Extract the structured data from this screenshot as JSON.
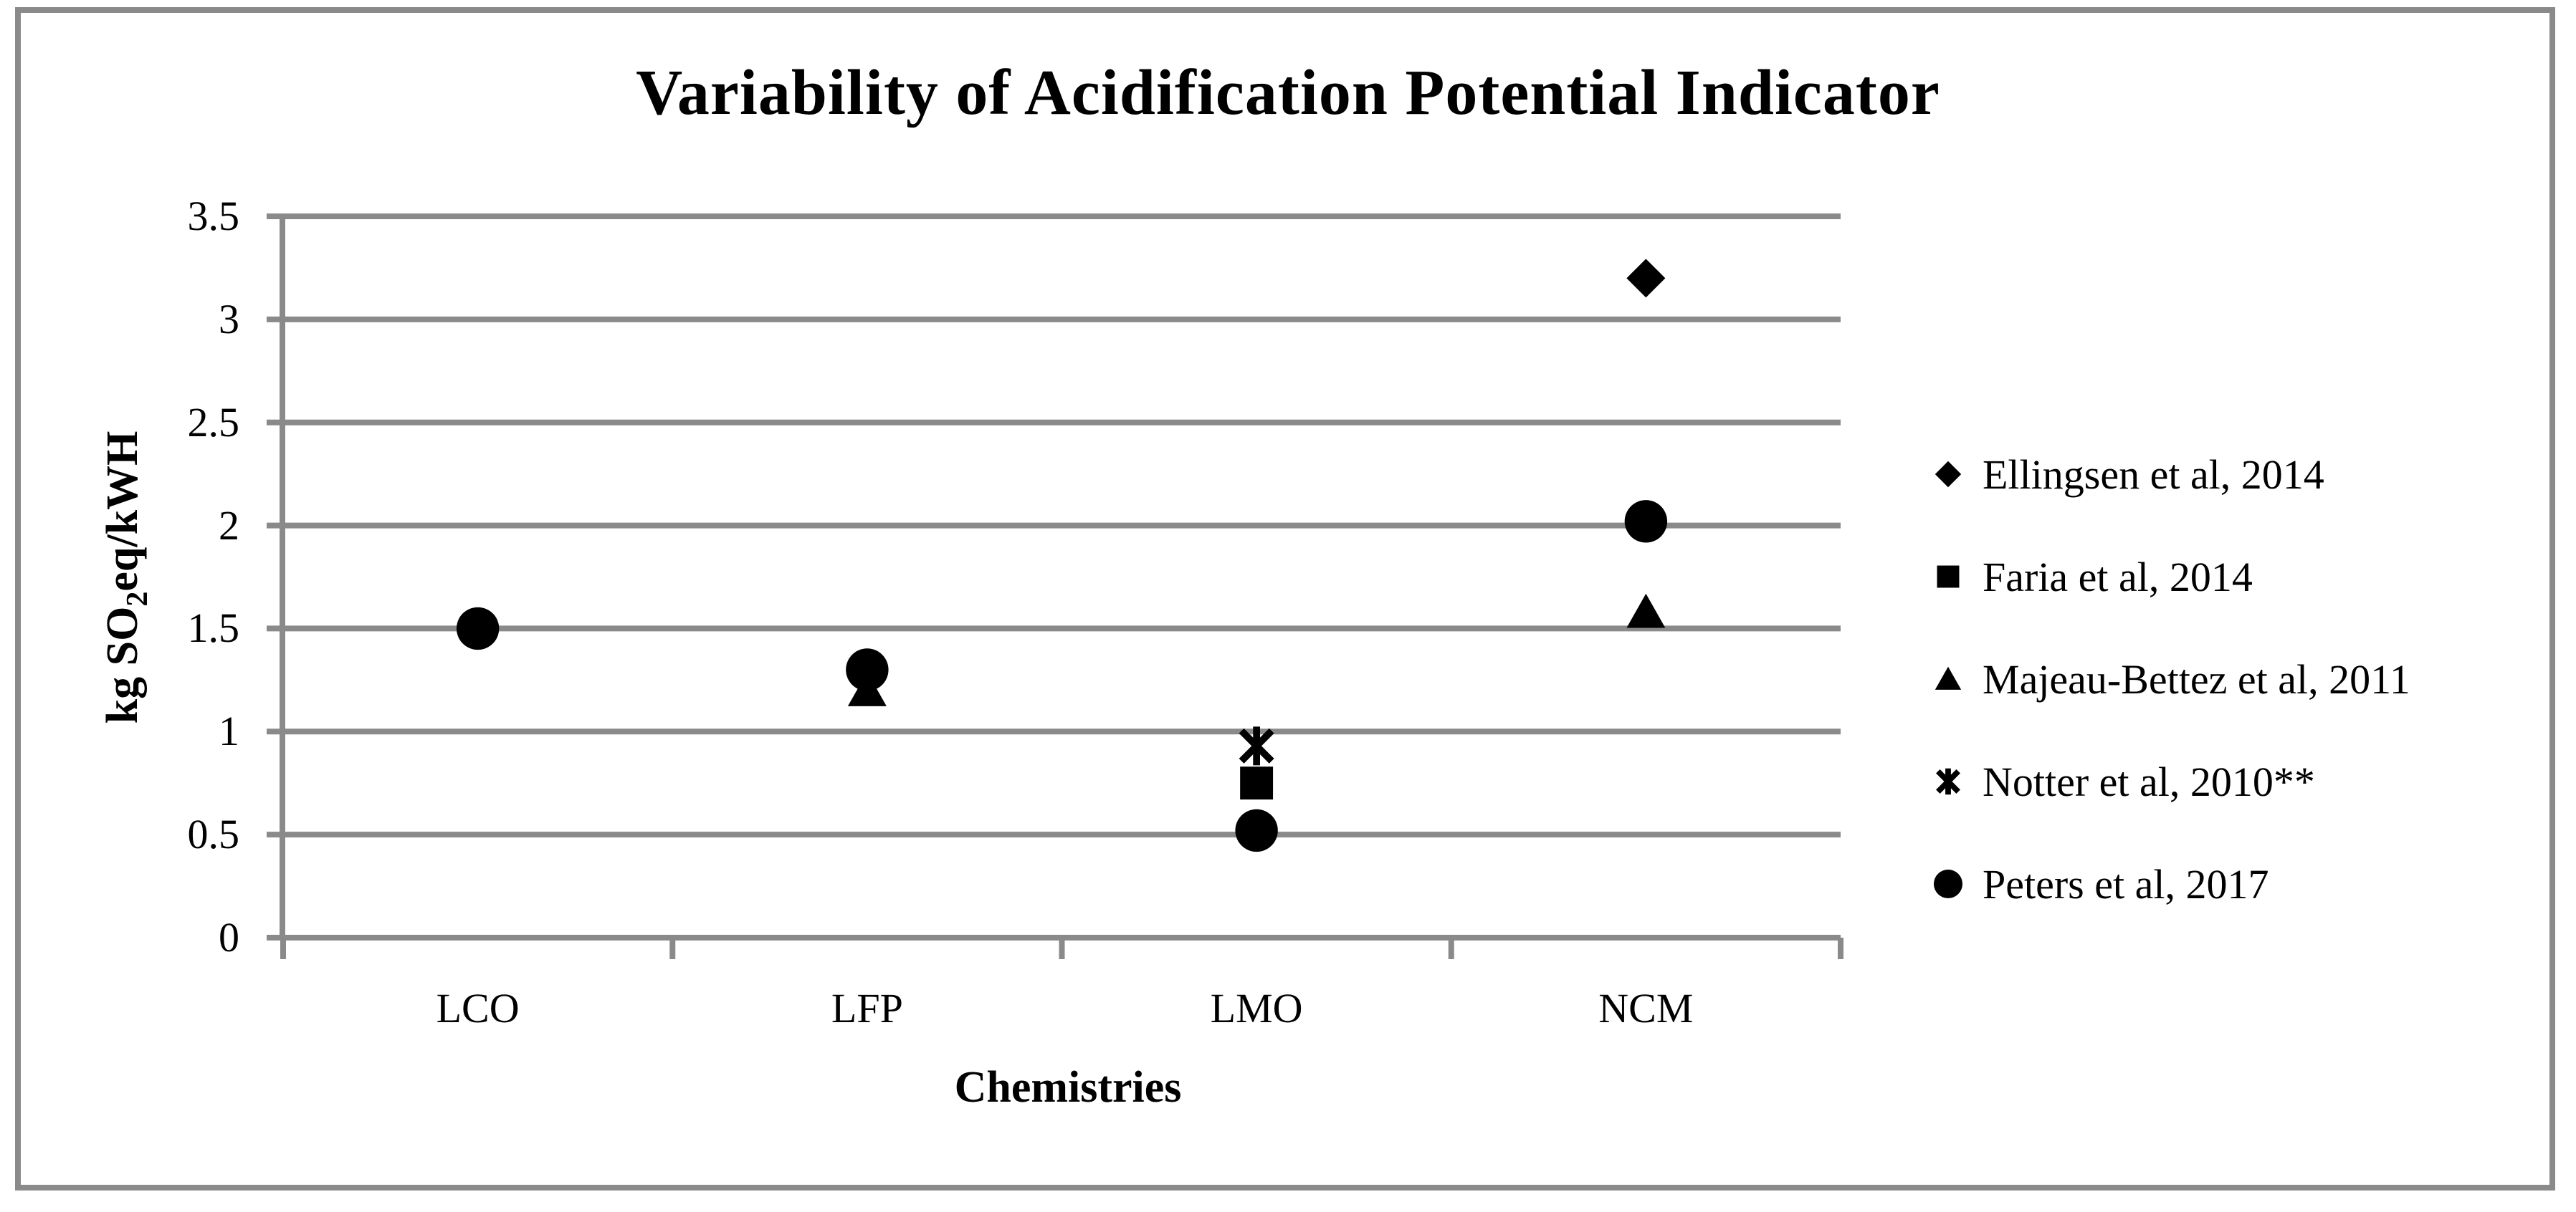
{
  "figure": {
    "background": "#ffffff",
    "border_color": "#8a8a8a"
  },
  "chart_data": {
    "type": "scatter",
    "title": "Variability of Acidification Potential Indicator",
    "xlabel": "Chemistries",
    "ylabel": {
      "prefix": "kg SO",
      "sub": "2",
      "suffix": "eq/kWH"
    },
    "categories": [
      "LCO",
      "LFP",
      "LMO",
      "NCM"
    ],
    "ylim": [
      0,
      3.5
    ],
    "ytick_step": 0.5,
    "ytick_labels": [
      "0",
      "0.5",
      "1",
      "1.5",
      "2",
      "2.5",
      "3",
      "3.5"
    ],
    "grid": true,
    "legend_position": "right",
    "marker_color": "#000000",
    "axis_color": "#8a8a8a",
    "series": [
      {
        "name": "Ellingsen et al, 2014",
        "marker": "diamond",
        "points": [
          {
            "category": "NCM",
            "value": 3.2
          }
        ]
      },
      {
        "name": "Faria et al, 2014",
        "marker": "square",
        "points": [
          {
            "category": "LMO",
            "value": 0.75
          }
        ]
      },
      {
        "name": "Majeau-Bettez et al, 2011",
        "marker": "triangle",
        "points": [
          {
            "category": "LFP",
            "value": 1.2
          },
          {
            "category": "NCM",
            "value": 1.58
          }
        ]
      },
      {
        "name": "Notter et al, 2010**",
        "marker": "star",
        "points": [
          {
            "category": "LMO",
            "value": 0.93
          }
        ]
      },
      {
        "name": "Peters et al, 2017",
        "marker": "circle",
        "points": [
          {
            "category": "LCO",
            "value": 1.5
          },
          {
            "category": "LFP",
            "value": 1.3
          },
          {
            "category": "LMO",
            "value": 0.52
          },
          {
            "category": "NCM",
            "value": 2.02
          }
        ]
      }
    ]
  }
}
